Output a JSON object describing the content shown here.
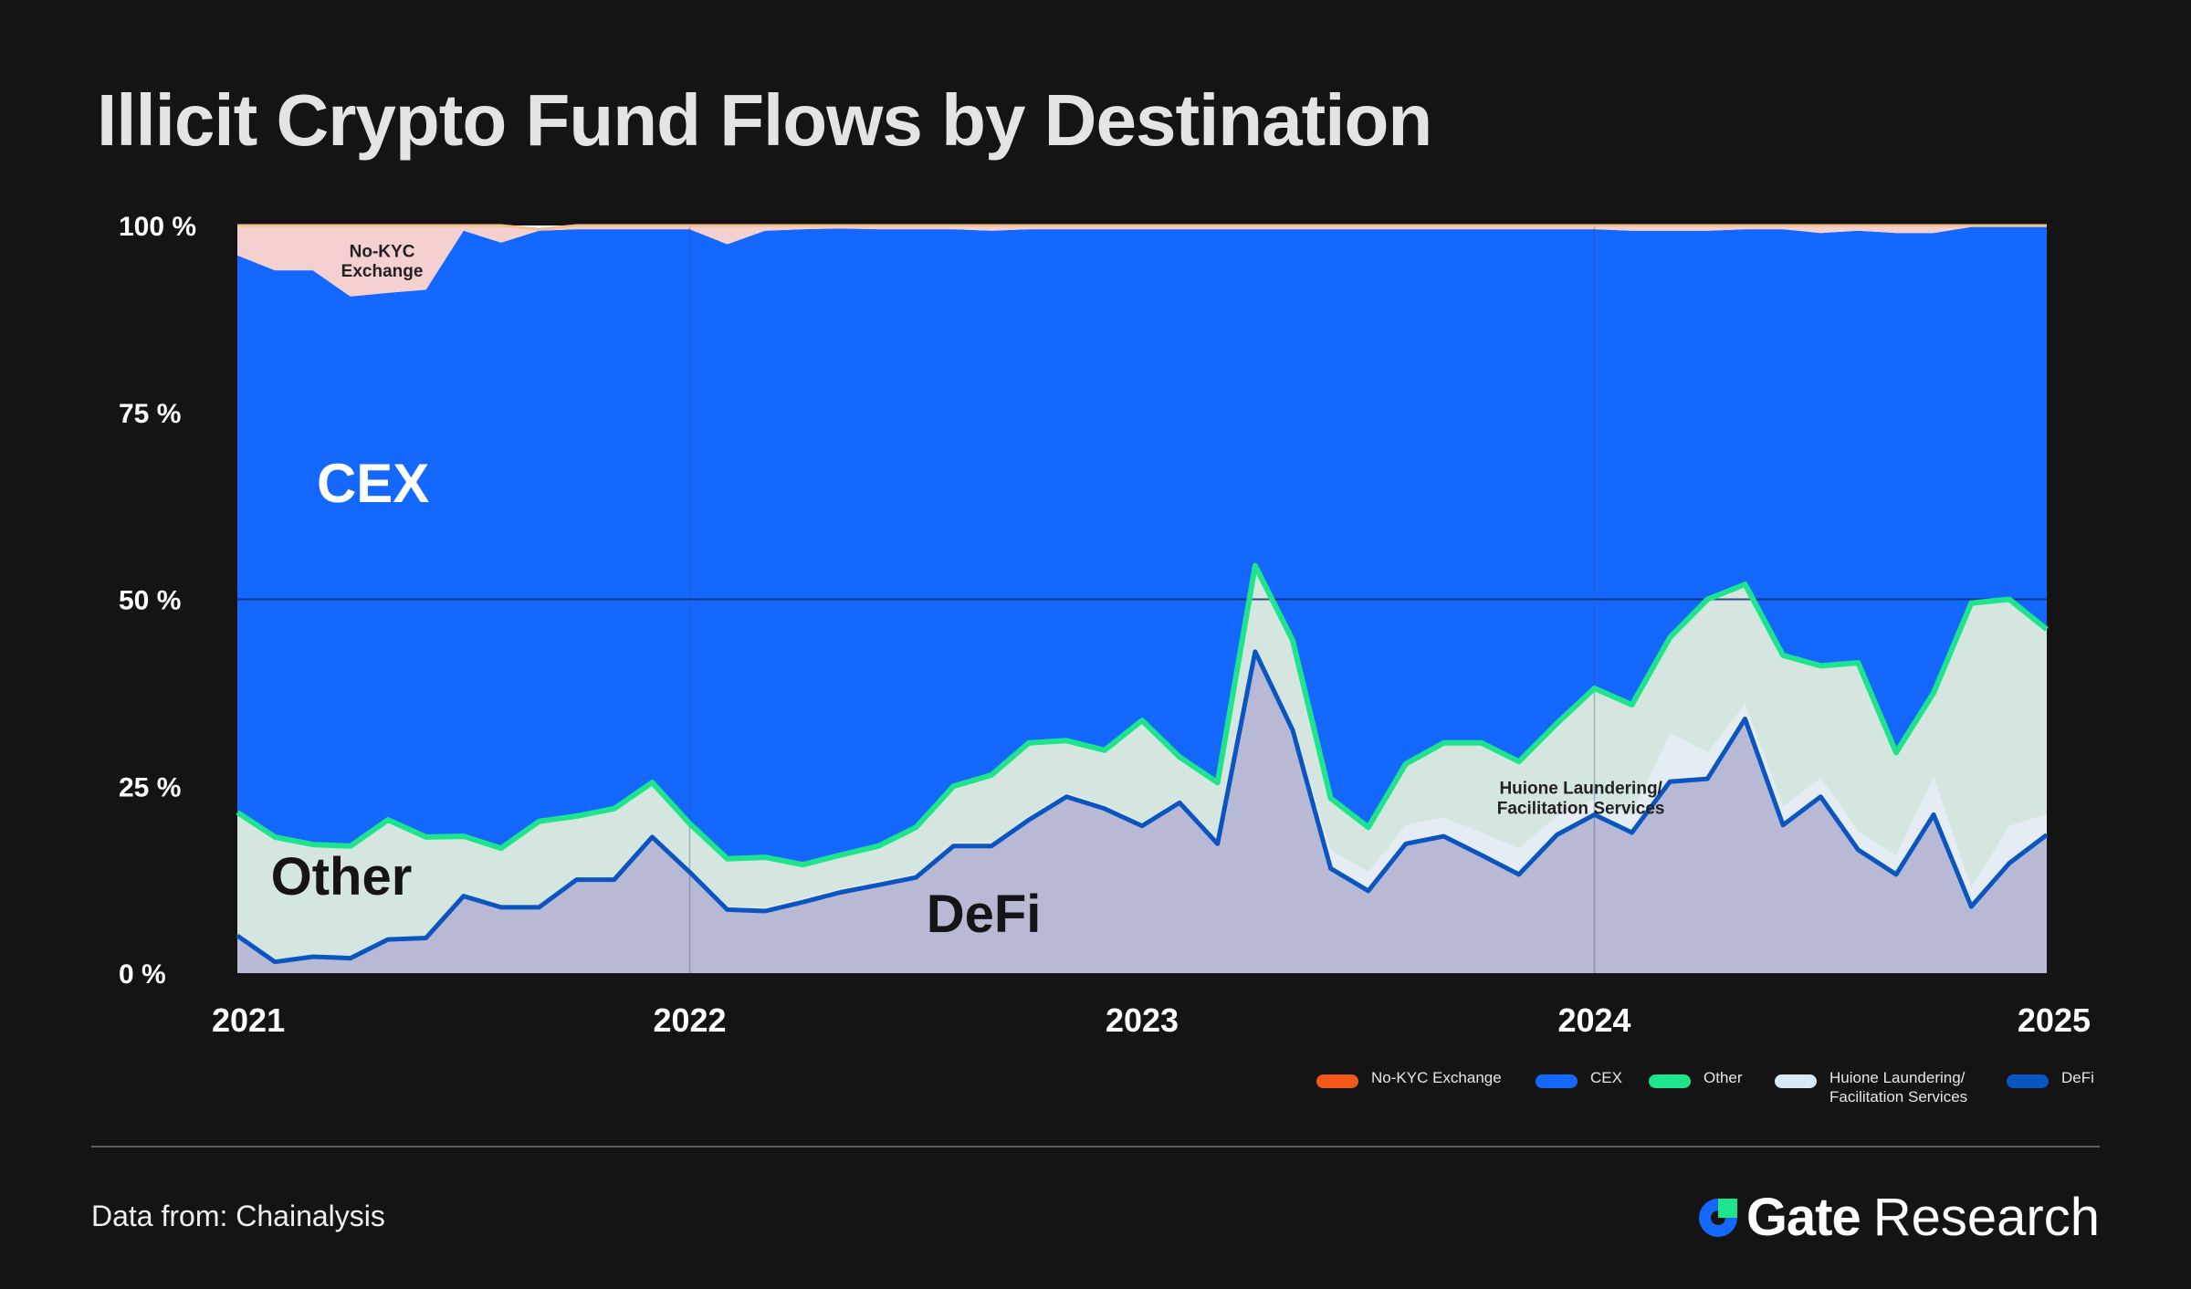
{
  "title": "Illicit Crypto Fund Flows by Destination",
  "source": "Data from:  Chainalysis",
  "brand": {
    "name": "Gate",
    "suffix": "Research",
    "logo_icon": "gate-logo-icon"
  },
  "colors": {
    "background": "#141414",
    "no_kyc": "#f4d0d0",
    "no_kyc_edge": "#f6c08a",
    "cex": "#1468ff",
    "other": "#d5e5e0",
    "other_edge": "#1ee58c",
    "huione": "#e6ecf3",
    "defi": "#b7b9d5",
    "defi_edge": "#0b55c0"
  },
  "chart_data": {
    "type": "area",
    "stacked": true,
    "percent": true,
    "x": [
      2021.0,
      2021.083,
      2021.167,
      2021.25,
      2021.333,
      2021.417,
      2021.5,
      2021.583,
      2021.667,
      2021.75,
      2021.833,
      2021.917,
      2022.0,
      2022.083,
      2022.167,
      2022.25,
      2022.333,
      2022.417,
      2022.5,
      2022.583,
      2022.667,
      2022.75,
      2022.833,
      2022.917,
      2023.0,
      2023.083,
      2023.167,
      2023.25,
      2023.333,
      2023.417,
      2023.5,
      2023.583,
      2023.667,
      2023.75,
      2023.833,
      2023.917,
      2024.0,
      2024.083,
      2024.167,
      2024.25,
      2024.333,
      2024.417,
      2024.5,
      2024.583,
      2024.667,
      2024.75,
      2024.833,
      2024.917,
      2025.0
    ],
    "series": [
      {
        "name": "DeFi",
        "values": [
          5,
          1.5,
          2.2,
          2,
          4.5,
          4.7,
          10.3,
          8.8,
          8.8,
          12.5,
          12.5,
          18.2,
          13.5,
          8.5,
          8.3,
          9.5,
          10.8,
          11.8,
          12.8,
          17,
          17,
          20.5,
          23.6,
          22,
          19.7,
          22.8,
          17.3,
          43,
          32.5,
          14,
          11,
          17.3,
          18.3,
          15.8,
          13.2,
          18.5,
          21.2,
          18.8,
          25.6,
          26,
          34,
          19.8,
          23.6,
          16.5,
          13.2,
          21.2,
          8.9,
          14.7,
          18.5
        ]
      },
      {
        "name": "Huione Laundering/\nFacilitation Services",
        "values": [
          0,
          0,
          0,
          0,
          0,
          0,
          0,
          0,
          0,
          0,
          0,
          0,
          0,
          0.3,
          0.5,
          0.5,
          0.5,
          0.5,
          0.5,
          0.5,
          0.5,
          0.5,
          0.5,
          0.5,
          0.5,
          0.5,
          0.5,
          0.5,
          0.5,
          2.5,
          2.5,
          2.5,
          2.5,
          3,
          3.5,
          2.5,
          2,
          2.5,
          6.5,
          3.5,
          2,
          2.5,
          2.5,
          2.5,
          2.5,
          5,
          2.5,
          5,
          2.8
        ]
      },
      {
        "name": "Other",
        "values": [
          16.5,
          16.7,
          15,
          15,
          16,
          13.5,
          8,
          7.9,
          11.5,
          8.5,
          9.5,
          7.3,
          6.5,
          6.5,
          6.7,
          4.5,
          4.5,
          4.7,
          6.2,
          7.5,
          9,
          9.8,
          7,
          7.3,
          13.6,
          5.6,
          7.7,
          11,
          11.5,
          6.9,
          6,
          8.2,
          10,
          12,
          11.6,
          12.4,
          14.9,
          14.6,
          12.8,
          20.5,
          16,
          20.2,
          15,
          22.5,
          13.8,
          11.3,
          38.1,
          30.3,
          24.7
        ]
      },
      {
        "name": "CEX",
        "values": [
          74.5,
          75.8,
          76.8,
          73.5,
          70.5,
          73.2,
          81,
          81,
          79,
          78.5,
          77.5,
          74,
          79.5,
          82.2,
          83.8,
          85,
          83.8,
          82.5,
          80,
          74.5,
          72.8,
          68.7,
          68.4,
          69.7,
          65.7,
          70.6,
          74,
          45,
          55,
          76.1,
          80,
          71.5,
          68.7,
          68.7,
          71.2,
          66.1,
          61.4,
          63.4,
          54.4,
          49.3,
          47.5,
          57,
          57.9,
          57.8,
          69.5,
          61.5,
          50.3,
          49.8,
          53.8
        ]
      },
      {
        "name": "No-KYC Exchange",
        "values": [
          4,
          6,
          6,
          9.5,
          9,
          8.6,
          0.7,
          2.3,
          0.2,
          0.5,
          0.5,
          0.5,
          0.5,
          2.5,
          0.7,
          0.5,
          0.4,
          0.5,
          0.5,
          0.5,
          0.7,
          0.5,
          0.5,
          0.5,
          0.5,
          0.5,
          0.5,
          0.5,
          0.5,
          0.5,
          0.5,
          0.5,
          0.5,
          0.5,
          0.5,
          0.5,
          0.5,
          0.7,
          0.7,
          0.7,
          0.5,
          0.5,
          1,
          0.7,
          1,
          1,
          0.2,
          0.2,
          0.2
        ]
      }
    ],
    "xlim": [
      2021,
      2025
    ],
    "ylim": [
      0,
      100
    ],
    "x_ticks": [
      "2021",
      "2022",
      "2023",
      "2024",
      "2025"
    ],
    "y_ticks": [
      "0 %",
      "25 %",
      "50 %",
      "75 %",
      "100 %"
    ],
    "annotations": [
      {
        "text": "CEX",
        "x": 2021.3,
        "y": 63
      },
      {
        "text": "Other",
        "x": 2021.23,
        "y": 10.5
      },
      {
        "text": "DeFi",
        "x": 2022.65,
        "y": 5.5
      },
      {
        "text": "No-KYC\nExchange",
        "x": 2021.32,
        "y": 95.8
      },
      {
        "text": "Huione Laundering/\nFacilitation Services",
        "x": 2023.97,
        "y": 24
      }
    ],
    "gridlines": [
      50
    ],
    "legend": [
      "No-KYC Exchange",
      "CEX",
      "Other",
      "Huione Laundering/\nFacilitation Services",
      "DeFi"
    ],
    "legend_position": "bottom-right"
  },
  "legend": [
    {
      "label": "No-KYC Exchange",
      "color": "#f2581a"
    },
    {
      "label": "CEX",
      "color": "#1468ff"
    },
    {
      "label": "Other",
      "color": "#1ee58c"
    },
    {
      "label": "Huione Laundering/\nFacilitation Services",
      "color": "#d8e9f6"
    },
    {
      "label": "DeFi",
      "color": "#0b55c0"
    }
  ]
}
